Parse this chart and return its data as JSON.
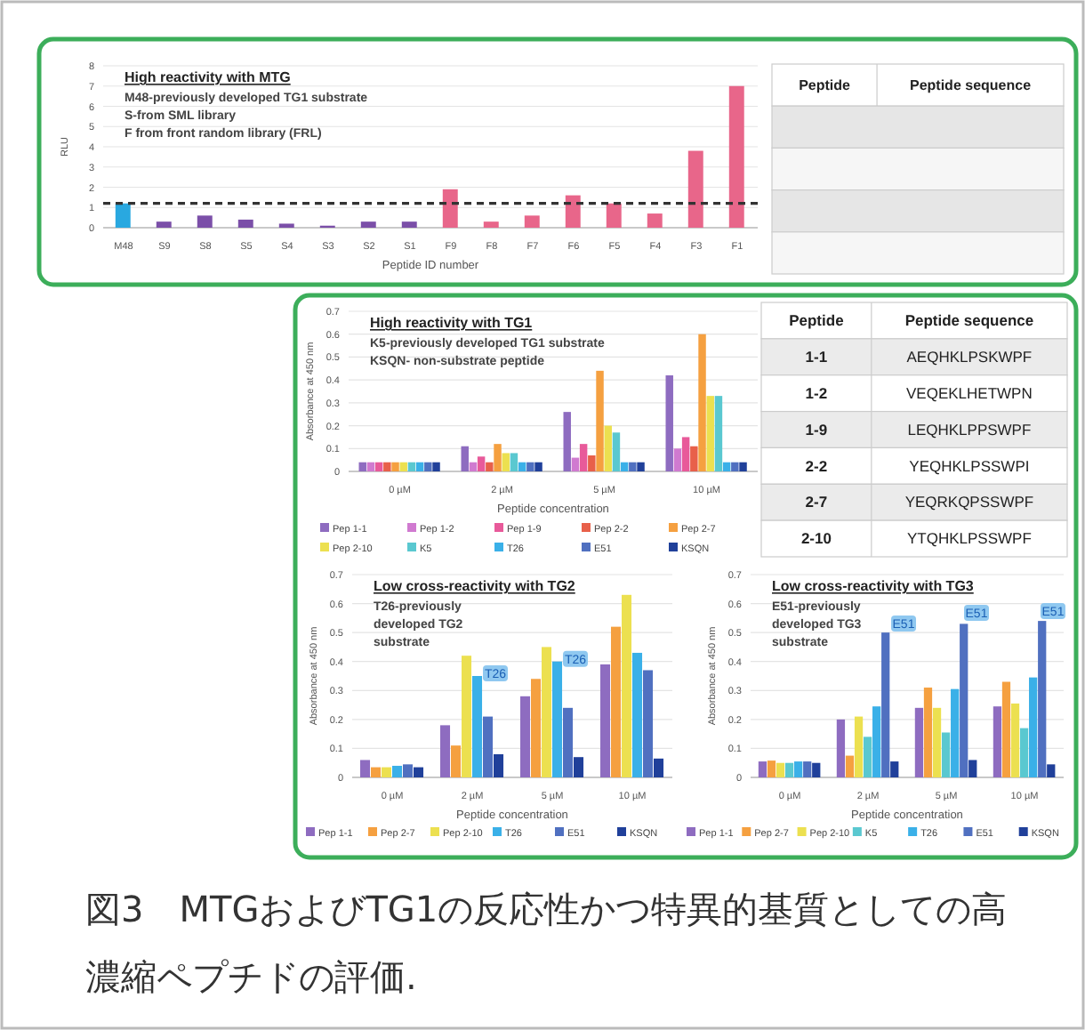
{
  "chart_data": [
    {
      "type": "bar",
      "title": "High reactivity with MTG",
      "ylabel": "RLU",
      "xlabel": "Peptide ID number",
      "annotations": [
        "M48-previously developed TG1 substrate",
        "S-from SML library",
        "F from front random library (FRL)"
      ],
      "categories": [
        "M48",
        "S9",
        "S8",
        "S5",
        "S4",
        "S3",
        "S2",
        "S1",
        "F9",
        "F8",
        "F7",
        "F6",
        "F5",
        "F4",
        "F3",
        "F1"
      ],
      "values": [
        1.2,
        0.3,
        0.6,
        0.4,
        0.2,
        0.1,
        0.3,
        0.3,
        1.9,
        0.3,
        0.6,
        1.6,
        1.2,
        0.7,
        3.8,
        7.0
      ],
      "colors": [
        "#29a8e0",
        "#7b4fa8",
        "#7b4fa8",
        "#7b4fa8",
        "#7b4fa8",
        "#7b4fa8",
        "#7b4fa8",
        "#7b4fa8",
        "#e8668a",
        "#e8668a",
        "#e8668a",
        "#e8668a",
        "#e8668a",
        "#e8668a",
        "#e8668a",
        "#e8668a"
      ],
      "ylim": [
        0,
        8
      ],
      "yticks": [
        0,
        1,
        2,
        3,
        4,
        5,
        6,
        7,
        8
      ],
      "grid": "y",
      "ref_lines": [
        {
          "axis": "y",
          "value": 1.2,
          "line_style": "dashed",
          "color": "#333333"
        }
      ]
    },
    {
      "type": "other",
      "annotations": [
        "Peptide",
        "Peptide sequence"
      ]
    },
    {
      "type": "bar",
      "title": "High reactivity with TG1",
      "ylabel": "Absorbance at 450 nm",
      "xlabel": "Peptide concentration",
      "annotations": [
        "K5-previously developed TG1 substrate",
        "KSQN- non-substrate peptide"
      ],
      "categories": [
        "0 µM",
        "2 µM",
        "5 µM",
        "10 µM"
      ],
      "ylim": [
        0,
        0.7
      ],
      "yticks": [
        0,
        0.1,
        0.2,
        0.3,
        0.4,
        0.5,
        0.6,
        0.7
      ],
      "grid": "y",
      "legend": "bottom",
      "series": [
        {
          "name": "Pep 1-1",
          "color": "#8e6cc0",
          "values": [
            0.04,
            0.11,
            0.26,
            0.42
          ]
        },
        {
          "name": "Pep 1-2",
          "color": "#d07ad0",
          "values": [
            0.04,
            0.04,
            0.06,
            0.1
          ]
        },
        {
          "name": "Pep 1-9",
          "color": "#e85a9a",
          "values": [
            0.04,
            0.065,
            0.12,
            0.15
          ]
        },
        {
          "name": "Pep 2-2",
          "color": "#e8604a",
          "values": [
            0.04,
            0.04,
            0.07,
            0.11
          ]
        },
        {
          "name": "Pep 2-7",
          "color": "#f5a040",
          "values": [
            0.04,
            0.12,
            0.44,
            0.6
          ]
        },
        {
          "name": "Pep 2-10",
          "color": "#ece050",
          "values": [
            0.04,
            0.08,
            0.2,
            0.33
          ]
        },
        {
          "name": "K5",
          "color": "#5ac8d0",
          "values": [
            0.04,
            0.08,
            0.17,
            0.33
          ]
        },
        {
          "name": "T26",
          "color": "#3ab0e8",
          "values": [
            0.04,
            0.04,
            0.04,
            0.04
          ]
        },
        {
          "name": "E51",
          "color": "#5070c0",
          "values": [
            0.04,
            0.04,
            0.04,
            0.04
          ]
        },
        {
          "name": "KSQN",
          "color": "#20409a",
          "values": [
            0.04,
            0.04,
            0.04,
            0.04
          ]
        }
      ]
    },
    {
      "type": "other",
      "annotations": [
        "Peptide",
        "Peptide sequence",
        "1-1",
        "AEQHKLPSKWPF",
        "1-2",
        "VEQEKLHETWPN",
        "1-9",
        "LEQHKLPPSWPF",
        "2-2",
        "YEQHKLPSSWPI",
        "2-7",
        "YEQRKQPSSWPF",
        "2-10",
        "YTQHKLPSSWPF"
      ]
    },
    {
      "type": "bar",
      "title": "Low cross-reactivity with TG2",
      "ylabel": "Absorbance at 450 nm",
      "xlabel": "Peptide concentration",
      "annotations": [
        "T26-previously developed TG2 substrate",
        {
          "text": "T26",
          "x": "2 µM",
          "y": 0.35
        },
        {
          "text": "T26",
          "x": "5 µM",
          "y": 0.4
        }
      ],
      "categories": [
        "0 µM",
        "2 µM",
        "5 µM",
        "10 µM"
      ],
      "ylim": [
        0,
        0.7
      ],
      "yticks": [
        0,
        0.1,
        0.2,
        0.3,
        0.4,
        0.5,
        0.6,
        0.7
      ],
      "grid": "y",
      "legend": "bottom",
      "series": [
        {
          "name": "Pep 1-1",
          "color": "#8e6cc0",
          "values": [
            0.06,
            0.18,
            0.28,
            0.39
          ]
        },
        {
          "name": "Pep 2-7",
          "color": "#f5a040",
          "values": [
            0.035,
            0.11,
            0.34,
            0.52
          ]
        },
        {
          "name": "Pep 2-10",
          "color": "#ece050",
          "values": [
            0.035,
            0.42,
            0.45,
            0.63
          ]
        },
        {
          "name": "T26",
          "color": "#3ab0e8",
          "values": [
            0.04,
            0.35,
            0.4,
            0.43
          ]
        },
        {
          "name": "E51",
          "color": "#5070c0",
          "values": [
            0.045,
            0.21,
            0.24,
            0.37
          ]
        },
        {
          "name": "KSQN",
          "color": "#20409a",
          "values": [
            0.035,
            0.08,
            0.07,
            0.065
          ]
        }
      ]
    },
    {
      "type": "bar",
      "title": "Low cross-reactivity with TG3",
      "ylabel": "Absorbance at 450 nm",
      "xlabel": "Peptide concentration",
      "annotations": [
        "E51-previously developed TG3 substrate",
        "E51",
        "E51",
        "E51"
      ],
      "categories": [
        "0 µM",
        "2 µM",
        "5 µM",
        "10 µM"
      ],
      "ylim": [
        0,
        0.7
      ],
      "yticks": [
        0,
        0.1,
        0.2,
        0.3,
        0.4,
        0.5,
        0.6,
        0.7
      ],
      "grid": "y",
      "legend": "bottom",
      "series": [
        {
          "name": "Pep 1-1",
          "color": "#8e6cc0",
          "values": [
            0.055,
            0.2,
            0.24,
            0.245
          ]
        },
        {
          "name": "Pep 2-7",
          "color": "#f5a040",
          "values": [
            0.058,
            0.075,
            0.31,
            0.33
          ]
        },
        {
          "name": "Pep 2-10",
          "color": "#ece050",
          "values": [
            0.05,
            0.21,
            0.24,
            0.255
          ]
        },
        {
          "name": "K5",
          "color": "#5ac8d0",
          "values": [
            0.05,
            0.14,
            0.155,
            0.17
          ]
        },
        {
          "name": "T26",
          "color": "#3ab0e8",
          "values": [
            0.055,
            0.245,
            0.305,
            0.345
          ]
        },
        {
          "name": "E51",
          "color": "#5070c0",
          "values": [
            0.055,
            0.5,
            0.53,
            0.54
          ]
        },
        {
          "name": "KSQN",
          "color": "#20409a",
          "values": [
            0.05,
            0.055,
            0.06,
            0.045
          ]
        }
      ]
    },
    {
      "type": "other",
      "annotations": [
        "図3　MTGおよびTG1の反応性かつ特異的基質としての高濃縮ペプチドの評価."
      ]
    }
  ]
}
